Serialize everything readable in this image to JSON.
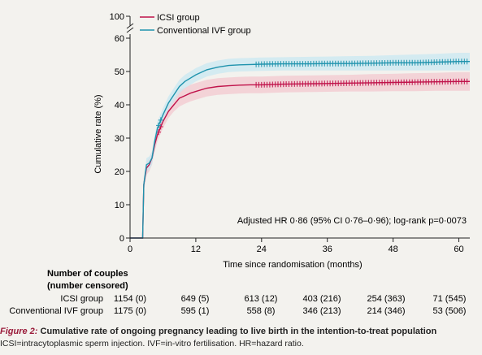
{
  "chart_data": {
    "type": "line",
    "xlabel": "Time since randomisation (months)",
    "ylabel": "Cumulative rate (%)",
    "xlim": [
      0,
      62
    ],
    "ylim": [
      0,
      65
    ],
    "axis_break_top_label": "100",
    "x_ticks": [
      0,
      12,
      24,
      36,
      48,
      60
    ],
    "y_ticks": [
      0,
      10,
      20,
      30,
      40,
      50,
      60
    ],
    "legend_position": "top-left",
    "grid": false,
    "annotation": "Adjusted HR 0·86 (95% CI 0·76–0·96); log-rank p=0·0073",
    "series": [
      {
        "name": "ICSI group",
        "color": "#c0124a",
        "band_color": "#f3c8cf",
        "x": [
          0,
          2.3,
          2.5,
          3,
          3.5,
          4,
          4.5,
          5,
          5.5,
          6,
          7,
          8,
          9,
          10,
          11,
          12,
          14,
          16,
          18,
          20,
          22,
          24,
          28,
          32,
          36,
          40,
          44,
          48,
          52,
          56,
          60,
          62
        ],
        "y": [
          0,
          0,
          16,
          21,
          22,
          24,
          28,
          31,
          33,
          35,
          38,
          40,
          42,
          42.7,
          43.5,
          44,
          45,
          45.5,
          45.7,
          45.9,
          46,
          46,
          46.2,
          46.3,
          46.4,
          46.5,
          46.6,
          46.7,
          46.8,
          46.9,
          47,
          47
        ],
        "lower": [
          0,
          0,
          14,
          19,
          20,
          22,
          26,
          29,
          31,
          33,
          36,
          38,
          39.5,
          40.3,
          41,
          41.5,
          42.5,
          43,
          43.2,
          43.4,
          43.5,
          43.5,
          43.7,
          43.8,
          43.9,
          44,
          44,
          44.1,
          44.1,
          44.2,
          44.2,
          44.2
        ],
        "upper": [
          0,
          0,
          18,
          23,
          24,
          26,
          30,
          33,
          35,
          37,
          40,
          42,
          44.5,
          45.1,
          46,
          46.5,
          47.5,
          48,
          48.2,
          48.4,
          48.5,
          48.5,
          48.7,
          48.8,
          48.9,
          49,
          49.2,
          49.3,
          49.5,
          49.6,
          49.8,
          49.8
        ],
        "censor_x_start": 23,
        "censor_step": 0.5
      },
      {
        "name": "Conventional IVF group",
        "color": "#1f93ad",
        "band_color": "#c9e8f2",
        "x": [
          0,
          2.3,
          2.5,
          3,
          3.5,
          4,
          4.5,
          5,
          5.5,
          6,
          7,
          8,
          9,
          10,
          11,
          12,
          14,
          16,
          18,
          20,
          22,
          24,
          28,
          32,
          36,
          40,
          44,
          48,
          52,
          56,
          60,
          62
        ],
        "y": [
          0,
          0,
          16,
          22,
          22.5,
          24,
          29,
          33,
          35,
          37,
          40.5,
          43,
          45.5,
          47,
          48,
          49,
          50.5,
          51.3,
          51.8,
          52,
          52.1,
          52.2,
          52.3,
          52.3,
          52.4,
          52.4,
          52.5,
          52.6,
          52.6,
          52.8,
          53,
          53
        ],
        "lower": [
          0,
          0,
          14,
          20,
          20.5,
          22,
          27,
          31,
          33,
          35,
          38.5,
          41,
          43.5,
          45,
          46,
          47,
          48.5,
          49.3,
          49.8,
          50,
          50.1,
          50.2,
          50.3,
          50.3,
          50.3,
          50.3,
          50.3,
          50.3,
          50.3,
          50.3,
          50.3,
          50.3
        ],
        "upper": [
          0,
          0,
          18,
          24,
          24.5,
          26,
          31,
          35,
          37,
          39,
          42.5,
          45,
          47.5,
          49,
          50,
          51,
          52.5,
          53.3,
          53.8,
          54,
          54.1,
          54.2,
          54.3,
          54.4,
          54.5,
          54.6,
          54.7,
          54.9,
          55.1,
          55.3,
          55.6,
          55.6
        ],
        "censor_x_start": 23,
        "censor_step": 0.5
      }
    ]
  },
  "risk_table": {
    "heading_line1": "Number of couples",
    "heading_line2": "(number censored)",
    "rows": [
      {
        "label": "ICSI group",
        "cells": [
          "1154 (0)",
          "649 (5)",
          "613 (12)",
          "403 (216)",
          "254 (363)",
          "71 (545)"
        ]
      },
      {
        "label": "Conventional IVF group",
        "cells": [
          "1175 (0)",
          "595 (1)",
          "558 (8)",
          "346 (213)",
          "214 (346)",
          "53 (506)"
        ]
      }
    ]
  },
  "caption": {
    "label": "Figure 2:",
    "title": "Cumulative rate of ongoing pregnancy leading to live birth in the intention-to-treat population",
    "abbreviations": "ICSI=intracytoplasmic sperm injection. IVF=in-vitro fertilisation. HR=hazard ratio."
  }
}
